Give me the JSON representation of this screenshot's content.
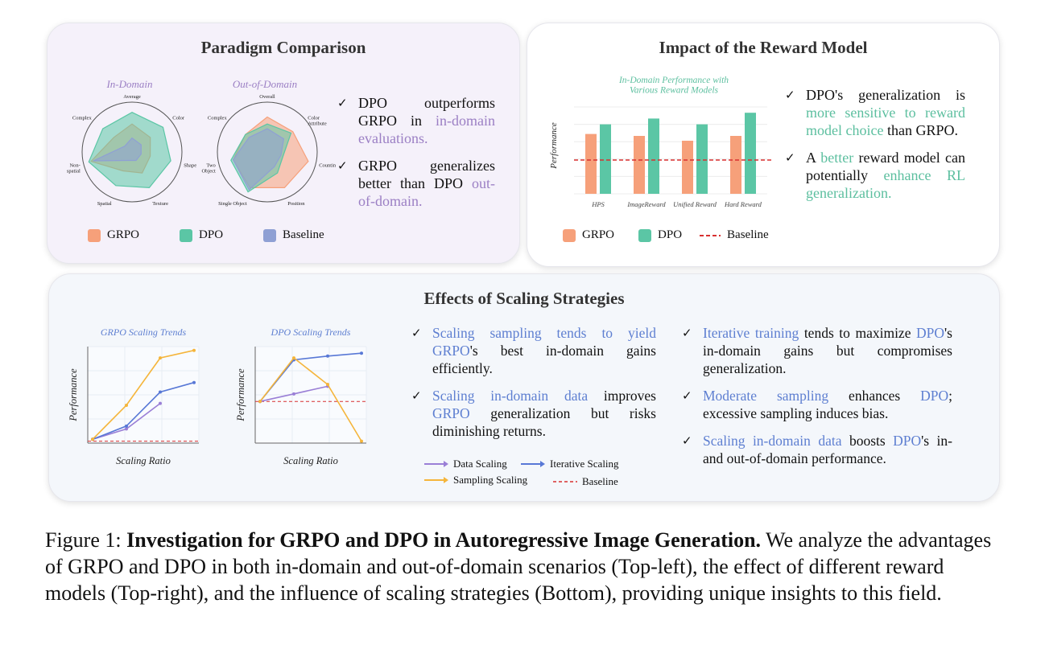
{
  "colors": {
    "grpo": "#f6a07a",
    "dpo": "#5bc6a5",
    "baseline": "#8fa0d4",
    "purple": "#9b7fc4",
    "teal": "#5cbf9f",
    "blue": "#5e7fd1",
    "red": "#d83030",
    "orange": "#f5b53b",
    "violet": "#9a7fd6",
    "iter": "#5878d6"
  },
  "paradigm": {
    "title": "Paradigm Comparison",
    "radar_in_title": "In-Domain",
    "radar_out_title": "Out-of-Domain",
    "bullet1_pre": "DPO outperforms GRPO in ",
    "bullet1_hl": "in-domain evaluations.",
    "bullet2_pre": "GRPO generalizes better than DPO ",
    "bullet2_hl": "out-of-domain.",
    "legend": [
      "GRPO",
      "DPO",
      "Baseline"
    ]
  },
  "reward": {
    "title": "Impact of the Reward Model",
    "bullet1_pre": "DPO's generalization is ",
    "bullet1_hl": "more sensitive to reward model choice",
    "bullet1_post": " than GRPO.",
    "bullet2_a": "A ",
    "bullet2_hl1": "better",
    "bullet2_b": " reward model can potentially ",
    "bullet2_hl2": "enhance RL generalization.",
    "legend": [
      "GRPO",
      "DPO",
      "Baseline"
    ]
  },
  "scaling": {
    "title": "Effects of Scaling Strategies",
    "b1_hl": "Scaling sampling tends to yield",
    "b1_hl2": "GRPO",
    "b1_post": "'s best in-domain gains efficiently.",
    "b2_hl": "Scaling in-domain data",
    "b2_mid": " improves ",
    "b2_hl2": "GRPO",
    "b2_post": " generalization but risks diminishing returns.",
    "b3_hl": "Iterative training",
    "b3_mid": " tends to maximize ",
    "b3_hl2": "DPO",
    "b3_post": "'s in-domain gains but compromises generalization.",
    "b4_hl": "Moderate sampling",
    "b4_mid": " enhances ",
    "b4_hl2": "DPO",
    "b4_post": "; excessive sampling induces bias.",
    "b5_hl": "Scaling in-domain data",
    "b5_mid": " boosts ",
    "b5_hl2": "DPO",
    "b5_post": "'s in- and out-of-domain performance.",
    "legend": [
      "Data Scaling",
      "Iterative Scaling",
      "Sampling Scaling",
      "Baseline"
    ]
  },
  "caption": {
    "prefix": "Figure 1: ",
    "bold": "Investigation for GRPO and DPO in Autoregressive Image Generation.",
    "rest": " We analyze the advantages of GRPO and DPO in both in-domain and out-of-domain scenarios (Top-left), the effect of different reward models (Top-right), and the influence of scaling strategies (Bottom), providing unique insights to this field."
  },
  "chart_data": [
    {
      "type": "radar",
      "title": "In-Domain",
      "axes": [
        "Average",
        "Color",
        "Shape",
        "Texture",
        "Spatial",
        "Non-\nspatial",
        "Complex"
      ],
      "series": [
        {
          "name": "GRPO",
          "values": [
            0.6,
            0.5,
            0.4,
            0.5,
            0.45,
            0.9,
            0.5
          ]
        },
        {
          "name": "DPO",
          "values": [
            0.85,
            0.85,
            0.85,
            0.85,
            0.8,
            0.95,
            0.8
          ]
        },
        {
          "name": "Baseline",
          "values": [
            0.3,
            0.25,
            0.2,
            0.2,
            0.2,
            0.85,
            0.2
          ]
        }
      ]
    },
    {
      "type": "radar",
      "title": "Out-of-Domain",
      "axes": [
        "Overall",
        "Color\nAttribute",
        "Counting",
        "Position",
        "Single Object",
        "Two\nObject",
        "Complex"
      ],
      "series": [
        {
          "name": "GRPO",
          "values": [
            0.75,
            0.7,
            0.9,
            0.85,
            0.85,
            0.75,
            0.6
          ]
        },
        {
          "name": "DPO",
          "values": [
            0.6,
            0.65,
            0.35,
            0.5,
            0.95,
            0.8,
            0.6
          ]
        },
        {
          "name": "Baseline",
          "values": [
            0.5,
            0.45,
            0.3,
            0.35,
            0.9,
            0.75,
            0.5
          ]
        }
      ]
    },
    {
      "type": "bar",
      "title": "In-Domain Performance with Various Reward Models",
      "ylabel": "Performance",
      "categories": [
        "HPS",
        "ImageReward",
        "Unified Reward",
        "Hard Reward"
      ],
      "series": [
        {
          "name": "GRPO",
          "values": [
            0.62,
            0.6,
            0.55,
            0.6
          ]
        },
        {
          "name": "DPO",
          "values": [
            0.72,
            0.78,
            0.72,
            0.84
          ]
        }
      ],
      "baseline": 0.35,
      "ylim": [
        0,
        0.9
      ]
    },
    {
      "type": "line",
      "title": "GRPO Scaling Trends",
      "xlabel": "Scaling Ratio",
      "ylabel": "Performance",
      "x": [
        0,
        1,
        2,
        3
      ],
      "series": [
        {
          "name": "Data Scaling",
          "values": [
            0.02,
            0.13,
            0.4,
            null
          ]
        },
        {
          "name": "Iterative Scaling",
          "values": [
            0.02,
            0.16,
            0.52,
            0.62
          ]
        },
        {
          "name": "Sampling Scaling",
          "values": [
            0.02,
            0.38,
            0.88,
            0.96
          ]
        }
      ],
      "baseline": 0.0,
      "ylim": [
        -0.02,
        1.0
      ]
    },
    {
      "type": "line",
      "title": "DPO Scaling Trends",
      "xlabel": "Scaling Ratio",
      "ylabel": "Performance",
      "x": [
        0,
        1,
        2,
        3
      ],
      "series": [
        {
          "name": "Data Scaling",
          "values": [
            0.42,
            0.5,
            0.58,
            null
          ]
        },
        {
          "name": "Iterative Scaling",
          "values": [
            0.42,
            0.86,
            0.9,
            0.93
          ]
        },
        {
          "name": "Sampling Scaling",
          "values": [
            0.42,
            0.88,
            0.6,
            0.0
          ]
        }
      ],
      "baseline": 0.42,
      "ylim": [
        -0.02,
        1.0
      ]
    }
  ]
}
